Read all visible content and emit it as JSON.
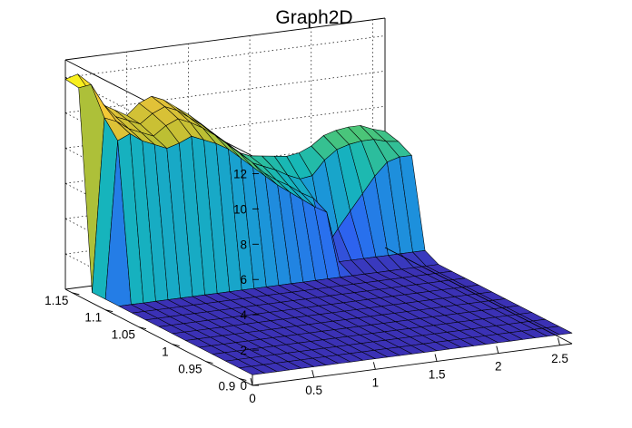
{
  "chart_data": {
    "type": "surface",
    "title": "Graph2D",
    "xlabel": "",
    "ylabel": "",
    "zlabel": "",
    "xlim": [
      0,
      2.6
    ],
    "ylim": [
      0.88,
      1.16
    ],
    "zlim": [
      0,
      13
    ],
    "x_ticks": [
      "0",
      "0.5",
      "1",
      "1.5",
      "2",
      "2.5"
    ],
    "y_ticks": [
      "0.9",
      "0.95",
      "1",
      "1.05",
      "1.1",
      "1.15"
    ],
    "z_ticks": [
      "0",
      "2",
      "4",
      "6",
      "8",
      "10",
      "12"
    ],
    "grid": true,
    "colormap": "parula",
    "colormap_stops": [
      "#3e26a8",
      "#2c66f3",
      "#1b97d8",
      "#15b7b9",
      "#54c86d",
      "#b8bf32",
      "#f3c33a",
      "#f9fb15"
    ],
    "grid_x": [
      0.0,
      0.1,
      0.2,
      0.3,
      0.4,
      0.5,
      0.6,
      0.7,
      0.8,
      0.9,
      1.0,
      1.1,
      1.2,
      1.3,
      1.4,
      1.5,
      1.6,
      1.7,
      1.8,
      1.9,
      2.0,
      2.1,
      2.2,
      2.3,
      2.4,
      2.5,
      2.6
    ],
    "grid_y": [
      0.88,
      0.9,
      0.92,
      0.94,
      0.96,
      0.98,
      1.0,
      1.02,
      1.04,
      1.06,
      1.08,
      1.1,
      1.12,
      1.14,
      1.16
    ],
    "z_values": [
      [
        0.6,
        0.6,
        0.6,
        0.6,
        0.6,
        0.6,
        0.6,
        0.6,
        0.6,
        0.6,
        0.6,
        0.6,
        0.6,
        0.6,
        0.6,
        0.6,
        0.6,
        0.6,
        0.6,
        0.6,
        0.6,
        0.6,
        0.6,
        0.6,
        0.6,
        0.6,
        0.6
      ],
      [
        0.6,
        0.6,
        0.6,
        0.6,
        0.6,
        0.6,
        0.6,
        0.6,
        0.6,
        0.6,
        0.6,
        0.6,
        0.6,
        0.6,
        0.6,
        0.6,
        0.6,
        0.6,
        0.6,
        0.6,
        0.6,
        0.6,
        0.6,
        0.6,
        0.6,
        0.6,
        0.6
      ],
      [
        0.6,
        0.6,
        0.6,
        0.6,
        0.6,
        0.6,
        0.6,
        0.6,
        0.6,
        0.6,
        0.6,
        0.6,
        0.6,
        0.6,
        0.6,
        0.6,
        0.6,
        0.6,
        0.6,
        0.6,
        0.6,
        0.6,
        0.6,
        0.6,
        0.6,
        0.6,
        0.6
      ],
      [
        0.6,
        0.6,
        0.6,
        0.6,
        0.6,
        0.6,
        0.6,
        0.6,
        0.6,
        0.6,
        0.6,
        0.6,
        0.6,
        0.6,
        0.6,
        0.6,
        0.6,
        0.6,
        0.6,
        0.6,
        0.6,
        0.6,
        0.6,
        0.6,
        0.6,
        0.6,
        0.6
      ],
      [
        0.6,
        0.6,
        0.6,
        0.6,
        0.6,
        0.6,
        0.6,
        0.6,
        0.6,
        0.6,
        0.6,
        0.6,
        0.6,
        0.6,
        0.6,
        0.6,
        0.6,
        0.6,
        0.6,
        0.6,
        0.6,
        0.6,
        0.6,
        0.6,
        0.6,
        0.6,
        0.6
      ],
      [
        0.6,
        0.6,
        0.6,
        0.6,
        0.6,
        0.6,
        0.6,
        0.6,
        0.6,
        0.6,
        0.6,
        0.6,
        0.6,
        0.6,
        0.6,
        0.6,
        0.6,
        0.6,
        0.6,
        0.6,
        0.6,
        0.6,
        0.6,
        0.6,
        0.6,
        0.6,
        0.6
      ],
      [
        0.6,
        0.6,
        0.6,
        0.6,
        0.6,
        0.6,
        0.6,
        0.6,
        0.6,
        0.6,
        0.6,
        0.6,
        0.6,
        0.6,
        0.6,
        0.6,
        0.6,
        0.6,
        0.6,
        0.6,
        0.6,
        0.6,
        0.6,
        0.6,
        0.6,
        0.6,
        0.6
      ],
      [
        0.6,
        0.6,
        0.6,
        0.6,
        0.6,
        0.6,
        0.6,
        0.6,
        0.6,
        0.6,
        0.6,
        0.6,
        0.6,
        0.6,
        0.6,
        0.6,
        0.6,
        0.6,
        0.6,
        0.6,
        0.6,
        0.6,
        0.6,
        0.6,
        0.6,
        0.6,
        0.6
      ],
      [
        0.6,
        0.6,
        0.6,
        0.6,
        0.6,
        0.6,
        0.6,
        0.6,
        0.6,
        0.6,
        0.6,
        0.6,
        0.6,
        0.6,
        0.6,
        0.6,
        0.6,
        0.6,
        0.6,
        0.6,
        0.6,
        0.6,
        0.6,
        0.6,
        0.6,
        0.6,
        0.6
      ],
      [
        0.6,
        0.6,
        0.6,
        0.6,
        0.6,
        0.6,
        0.6,
        0.6,
        0.6,
        0.6,
        0.6,
        0.6,
        0.6,
        0.6,
        0.6,
        0.6,
        0.6,
        0.6,
        0.6,
        0.6,
        0.6,
        0.6,
        0.6,
        0.6,
        0.6,
        0.6,
        0.6
      ],
      [
        0.6,
        0.6,
        0.6,
        0.6,
        0.6,
        0.6,
        0.6,
        0.6,
        0.6,
        0.6,
        0.6,
        0.6,
        0.6,
        0.6,
        0.6,
        0.6,
        0.6,
        0.6,
        0.6,
        0.6,
        0.6,
        0.6,
        0.6,
        0.6,
        0.6,
        0.6,
        0.6
      ],
      [
        0.6,
        9.5,
        9.8,
        9.3,
        9.0,
        8.7,
        8.9,
        9.2,
        8.9,
        8.6,
        8.2,
        7.6,
        7.0,
        6.4,
        5.8,
        5.3,
        4.8,
        4.3,
        3.9,
        1.0,
        1.0,
        1.0,
        1.0,
        1.0,
        1.0,
        1.0,
        1.0
      ],
      [
        0.6,
        10.4,
        10.1,
        9.6,
        9.3,
        9.0,
        9.5,
        9.8,
        9.5,
        9.1,
        8.6,
        8.0,
        7.4,
        6.8,
        6.1,
        5.6,
        5.2,
        4.7,
        4.3,
        1.4,
        2.4,
        3.3,
        4.2,
        5.1,
        5.8,
        6.0,
        6.0
      ],
      [
        11.8,
        11.9,
        10.7,
        9.9,
        9.6,
        9.3,
        9.8,
        10.1,
        9.8,
        9.3,
        8.8,
        8.2,
        7.6,
        7.0,
        6.3,
        6.0,
        5.7,
        5.3,
        5.0,
        5.1,
        5.9,
        6.4,
        6.6,
        6.7,
        6.7,
        6.5,
        6.4
      ],
      [
        11.9,
        12.1,
        11.0,
        10.2,
        9.8,
        9.4,
        10.0,
        10.3,
        10.0,
        9.5,
        9.0,
        8.4,
        7.7,
        7.1,
        6.5,
        6.2,
        6.1,
        6.0,
        5.9,
        6.0,
        6.3,
        6.8,
        7.0,
        7.1,
        7.1,
        6.8,
        6.6
      ]
    ]
  }
}
